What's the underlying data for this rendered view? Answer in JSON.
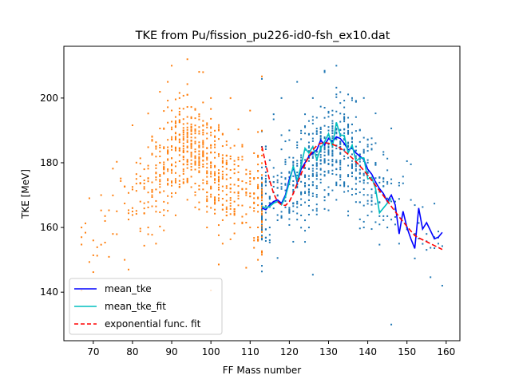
{
  "chart_data": {
    "type": "scatter",
    "title": "TKE from  Pu/fission_pu226-id0-fsh_ex10.dat",
    "xlabel": "FF Mass number",
    "ylabel": "TKE [MeV]",
    "xlim": [
      62.5,
      163.5
    ],
    "ylim": [
      125,
      216
    ],
    "x_ticks": [
      70,
      80,
      90,
      100,
      110,
      120,
      130,
      140,
      150,
      160
    ],
    "y_ticks": [
      140,
      160,
      180,
      200
    ],
    "grid": false,
    "legend_position": "lower-left",
    "legend": [
      "mean_tke",
      "mean_tke_fit",
      "exponential func. fit"
    ],
    "scatter_groups": [
      {
        "color": "#ff7f0e",
        "x_range": [
          66,
          113
        ],
        "symmetric_with": "heavy",
        "description_points": [
          [
            67,
            160
          ],
          [
            67,
            157
          ],
          [
            70,
            156
          ],
          [
            72,
            170
          ],
          [
            73,
            162
          ],
          [
            75,
            158
          ],
          [
            76,
            165
          ],
          [
            78,
            150
          ],
          [
            79,
            147
          ],
          [
            80,
            166
          ],
          [
            81,
            175
          ],
          [
            82,
            168
          ],
          [
            83,
            178
          ],
          [
            84,
            160
          ],
          [
            85,
            188
          ],
          [
            86,
            155
          ],
          [
            87,
            180
          ],
          [
            88,
            196
          ],
          [
            89,
            205
          ],
          [
            90,
            210
          ],
          [
            91,
            175
          ],
          [
            92,
            200
          ],
          [
            93,
            190
          ],
          [
            94,
            212
          ],
          [
            95,
            185
          ],
          [
            96,
            170
          ],
          [
            97,
            195
          ],
          [
            98,
            208
          ],
          [
            99,
            160
          ],
          [
            100,
            200
          ],
          [
            101,
            175
          ],
          [
            102,
            190
          ],
          [
            103,
            155
          ],
          [
            104,
            180
          ],
          [
            105,
            200
          ],
          [
            106,
            165
          ],
          [
            107,
            175
          ],
          [
            108,
            185
          ],
          [
            109,
            170
          ],
          [
            110,
            160
          ],
          [
            111,
            175
          ],
          [
            112,
            150
          ],
          [
            113,
            165
          ]
        ]
      },
      {
        "color": "#1f77b4",
        "x_range": [
          113,
          159
        ],
        "description_points": [
          [
            114,
            185
          ],
          [
            115,
            160
          ],
          [
            116,
            195
          ],
          [
            117,
            170
          ],
          [
            118,
            200
          ],
          [
            119,
            175
          ],
          [
            120,
            190
          ],
          [
            121,
            165
          ],
          [
            122,
            205
          ],
          [
            123,
            180
          ],
          [
            124,
            195
          ],
          [
            125,
            160
          ],
          [
            126,
            200
          ],
          [
            127,
            175
          ],
          [
            128,
            185
          ],
          [
            129,
            208
          ],
          [
            130,
            170
          ],
          [
            131,
            190
          ],
          [
            132,
            210
          ],
          [
            133,
            180
          ],
          [
            134,
            195
          ],
          [
            135,
            165
          ],
          [
            136,
            200
          ],
          [
            137,
            175
          ],
          [
            138,
            190
          ],
          [
            139,
            160
          ],
          [
            140,
            185
          ],
          [
            141,
            170
          ],
          [
            142,
            180
          ],
          [
            143,
            165
          ],
          [
            144,
            175
          ],
          [
            145,
            160
          ],
          [
            146,
            130
          ],
          [
            147,
            168
          ],
          [
            148,
            155
          ],
          [
            150,
            160
          ],
          [
            152,
            158
          ],
          [
            155,
            158
          ],
          [
            157,
            157
          ],
          [
            158,
            155
          ]
        ]
      }
    ],
    "series": [
      {
        "name": "mean_tke",
        "color": "#0000ff",
        "style": "solid",
        "x": [
          113,
          114,
          115,
          116,
          117,
          118,
          119,
          120,
          121,
          122,
          123,
          124,
          125,
          126,
          127,
          128,
          129,
          130,
          131,
          132,
          133,
          134,
          135,
          136,
          137,
          138,
          139,
          140,
          141,
          142,
          143,
          144,
          145,
          146,
          147,
          148,
          149,
          150,
          151,
          152,
          153,
          154,
          155,
          156,
          157,
          158,
          159
        ],
        "y": [
          166,
          165.5,
          167,
          168,
          168.5,
          167.5,
          170,
          175,
          178.5,
          174,
          178,
          180,
          182,
          183,
          184,
          187,
          185.5,
          187.5,
          186.5,
          188,
          187.5,
          186,
          184,
          184.5,
          183,
          182,
          181,
          178,
          176.5,
          174,
          172,
          170.5,
          168,
          170,
          167,
          158,
          165,
          160,
          156.5,
          153.5,
          166,
          159.5,
          161.5,
          159,
          156.5,
          157,
          158.5
        ]
      },
      {
        "name": "mean_tke_fit",
        "color": "#00bfbf",
        "style": "solid",
        "x": [
          113,
          114,
          115,
          116,
          117,
          118,
          119,
          120,
          121,
          122,
          123,
          124,
          125,
          126,
          127,
          128,
          129,
          130,
          131,
          132,
          133,
          134,
          135,
          136,
          137,
          138,
          139,
          140,
          141,
          142,
          143,
          144,
          145,
          146
        ],
        "y": [
          166.5,
          166,
          166.5,
          167.5,
          168,
          167,
          169.5,
          174,
          179,
          174.5,
          179,
          184.5,
          183,
          185,
          181,
          184.5,
          186.5,
          189,
          185,
          192.5,
          188.5,
          188.5,
          183,
          185.5,
          180.5,
          181.5,
          181.5,
          175,
          175.5,
          172,
          164.5,
          166,
          167.5,
          169
        ]
      },
      {
        "name": "exponential func. fit",
        "color": "#ff0000",
        "style": "dashed",
        "x": [
          113,
          114,
          115,
          116,
          117,
          118,
          119,
          120,
          121,
          122,
          123,
          124,
          125,
          126,
          127,
          128,
          129,
          130,
          131,
          132,
          133,
          134,
          135,
          136,
          137,
          138,
          139,
          140,
          141,
          142,
          143,
          144,
          145,
          146,
          147,
          148,
          149,
          150,
          151,
          152,
          153,
          154,
          155,
          156,
          157,
          158,
          159
        ],
        "y": [
          185,
          179.5,
          174.5,
          170.5,
          168,
          167,
          166.8,
          168,
          170.5,
          173.5,
          176.5,
          179.5,
          182,
          184,
          185.3,
          186,
          186.2,
          186,
          185.7,
          185.2,
          184.5,
          183.6,
          182.6,
          181.5,
          180.3,
          179,
          177.6,
          176.1,
          174.6,
          173,
          171.4,
          169.8,
          168.2,
          166.5,
          164.9,
          163.3,
          161.8,
          160.3,
          158.9,
          157.5,
          156.8,
          156.2,
          155.6,
          155,
          154.4,
          153.8,
          153.2
        ]
      }
    ]
  }
}
